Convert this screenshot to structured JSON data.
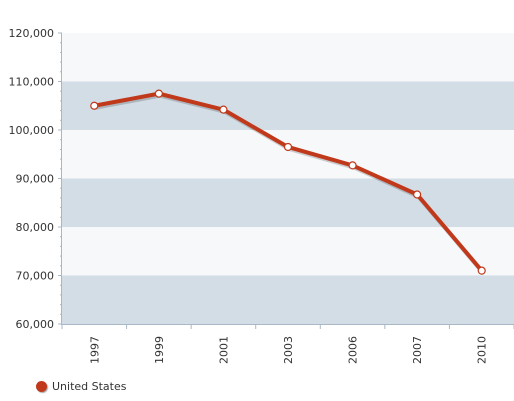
{
  "chart_data": {
    "type": "line",
    "categories": [
      "1997",
      "1999",
      "2001",
      "2003",
      "2006",
      "2007",
      "2010"
    ],
    "series": [
      {
        "name": "United States",
        "values": [
          105000,
          107500,
          104200,
          96500,
          92700,
          86700,
          71000
        ]
      }
    ],
    "y_ticks": [
      "60,000",
      "70,000",
      "80,000",
      "90,000",
      "100,000",
      "110,000",
      "120,000"
    ],
    "ylim": [
      60000,
      120000
    ],
    "ytick_step": 10000,
    "legend_position": "bottom-left",
    "grid": "alternating horizontal bands"
  },
  "colors": {
    "line": "#c0391b",
    "band_dark": "#d3dde6",
    "band_light": "#f6f8fa",
    "axis": "#a9b7c6"
  }
}
